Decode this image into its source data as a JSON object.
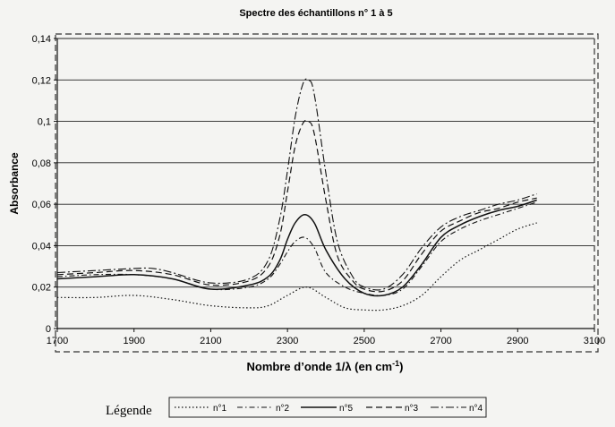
{
  "chart_data": {
    "type": "line",
    "title": "Spectre des échantillons n° 1 à 5",
    "xlabel_main": "Nombre d’onde 1/λ (en cm",
    "xlabel_sup": "-1",
    "xlabel_end": ")",
    "ylabel": "Absorbance",
    "xlim": [
      1700,
      3100
    ],
    "ylim": [
      0,
      0.14
    ],
    "x_ticks": [
      "1700",
      "1900",
      "2100",
      "2300",
      "2500",
      "2700",
      "2900",
      "3100"
    ],
    "y_ticks": [
      "0",
      "0,02",
      "0,04",
      "0,06",
      "0,08",
      "0,1",
      "0,12",
      "0,14"
    ],
    "grid": "horizontal",
    "legend_title": "Légende",
    "legend_position": "bottom",
    "series": [
      {
        "name": "n°1",
        "style": "dotted",
        "points": [
          [
            1700,
            0.015
          ],
          [
            1800,
            0.015
          ],
          [
            1900,
            0.016
          ],
          [
            2000,
            0.014
          ],
          [
            2100,
            0.011
          ],
          [
            2200,
            0.01
          ],
          [
            2250,
            0.011
          ],
          [
            2300,
            0.016
          ],
          [
            2350,
            0.02
          ],
          [
            2400,
            0.015
          ],
          [
            2450,
            0.01
          ],
          [
            2500,
            0.009
          ],
          [
            2550,
            0.009
          ],
          [
            2600,
            0.011
          ],
          [
            2650,
            0.016
          ],
          [
            2700,
            0.025
          ],
          [
            2750,
            0.033
          ],
          [
            2800,
            0.038
          ],
          [
            2850,
            0.043
          ],
          [
            2900,
            0.048
          ],
          [
            2950,
            0.051
          ]
        ]
      },
      {
        "name": "n°2",
        "style": "dashdot",
        "points": [
          [
            1700,
            0.025
          ],
          [
            1800,
            0.026
          ],
          [
            1900,
            0.026
          ],
          [
            2000,
            0.024
          ],
          [
            2100,
            0.019
          ],
          [
            2200,
            0.02
          ],
          [
            2250,
            0.024
          ],
          [
            2280,
            0.031
          ],
          [
            2300,
            0.037
          ],
          [
            2320,
            0.042
          ],
          [
            2345,
            0.044
          ],
          [
            2370,
            0.039
          ],
          [
            2400,
            0.027
          ],
          [
            2450,
            0.02
          ],
          [
            2500,
            0.017
          ],
          [
            2550,
            0.016
          ],
          [
            2600,
            0.019
          ],
          [
            2650,
            0.03
          ],
          [
            2700,
            0.042
          ],
          [
            2750,
            0.048
          ],
          [
            2800,
            0.052
          ],
          [
            2850,
            0.055
          ],
          [
            2900,
            0.058
          ],
          [
            2950,
            0.061
          ]
        ]
      },
      {
        "name": "n°5",
        "style": "solid",
        "points": [
          [
            1700,
            0.024
          ],
          [
            1800,
            0.025
          ],
          [
            1900,
            0.026
          ],
          [
            2000,
            0.024
          ],
          [
            2100,
            0.019
          ],
          [
            2200,
            0.021
          ],
          [
            2250,
            0.025
          ],
          [
            2280,
            0.033
          ],
          [
            2300,
            0.043
          ],
          [
            2320,
            0.051
          ],
          [
            2345,
            0.055
          ],
          [
            2370,
            0.051
          ],
          [
            2400,
            0.038
          ],
          [
            2450,
            0.024
          ],
          [
            2500,
            0.017
          ],
          [
            2550,
            0.016
          ],
          [
            2600,
            0.02
          ],
          [
            2650,
            0.031
          ],
          [
            2700,
            0.044
          ],
          [
            2750,
            0.05
          ],
          [
            2800,
            0.054
          ],
          [
            2850,
            0.057
          ],
          [
            2900,
            0.059
          ],
          [
            2950,
            0.062
          ]
        ]
      },
      {
        "name": "n°3",
        "style": "dashed",
        "points": [
          [
            1700,
            0.026
          ],
          [
            1800,
            0.027
          ],
          [
            1900,
            0.028
          ],
          [
            2000,
            0.026
          ],
          [
            2100,
            0.021
          ],
          [
            2200,
            0.023
          ],
          [
            2250,
            0.03
          ],
          [
            2280,
            0.045
          ],
          [
            2300,
            0.066
          ],
          [
            2320,
            0.088
          ],
          [
            2340,
            0.099
          ],
          [
            2355,
            0.1
          ],
          [
            2370,
            0.094
          ],
          [
            2400,
            0.062
          ],
          [
            2430,
            0.035
          ],
          [
            2470,
            0.023
          ],
          [
            2500,
            0.019
          ],
          [
            2550,
            0.018
          ],
          [
            2600,
            0.023
          ],
          [
            2650,
            0.036
          ],
          [
            2700,
            0.047
          ],
          [
            2750,
            0.052
          ],
          [
            2800,
            0.056
          ],
          [
            2850,
            0.058
          ],
          [
            2900,
            0.061
          ],
          [
            2950,
            0.063
          ]
        ]
      },
      {
        "name": "n°4",
        "style": "dashdot2",
        "points": [
          [
            1700,
            0.027
          ],
          [
            1800,
            0.028
          ],
          [
            1900,
            0.029
          ],
          [
            1950,
            0.029
          ],
          [
            2000,
            0.027
          ],
          [
            2100,
            0.022
          ],
          [
            2200,
            0.024
          ],
          [
            2250,
            0.033
          ],
          [
            2280,
            0.053
          ],
          [
            2300,
            0.076
          ],
          [
            2320,
            0.102
          ],
          [
            2340,
            0.118
          ],
          [
            2355,
            0.12
          ],
          [
            2370,
            0.113
          ],
          [
            2400,
            0.075
          ],
          [
            2430,
            0.042
          ],
          [
            2470,
            0.025
          ],
          [
            2500,
            0.02
          ],
          [
            2550,
            0.019
          ],
          [
            2600,
            0.026
          ],
          [
            2650,
            0.039
          ],
          [
            2700,
            0.049
          ],
          [
            2750,
            0.054
          ],
          [
            2800,
            0.057
          ],
          [
            2850,
            0.06
          ],
          [
            2900,
            0.062
          ],
          [
            2950,
            0.065
          ]
        ]
      }
    ]
  }
}
